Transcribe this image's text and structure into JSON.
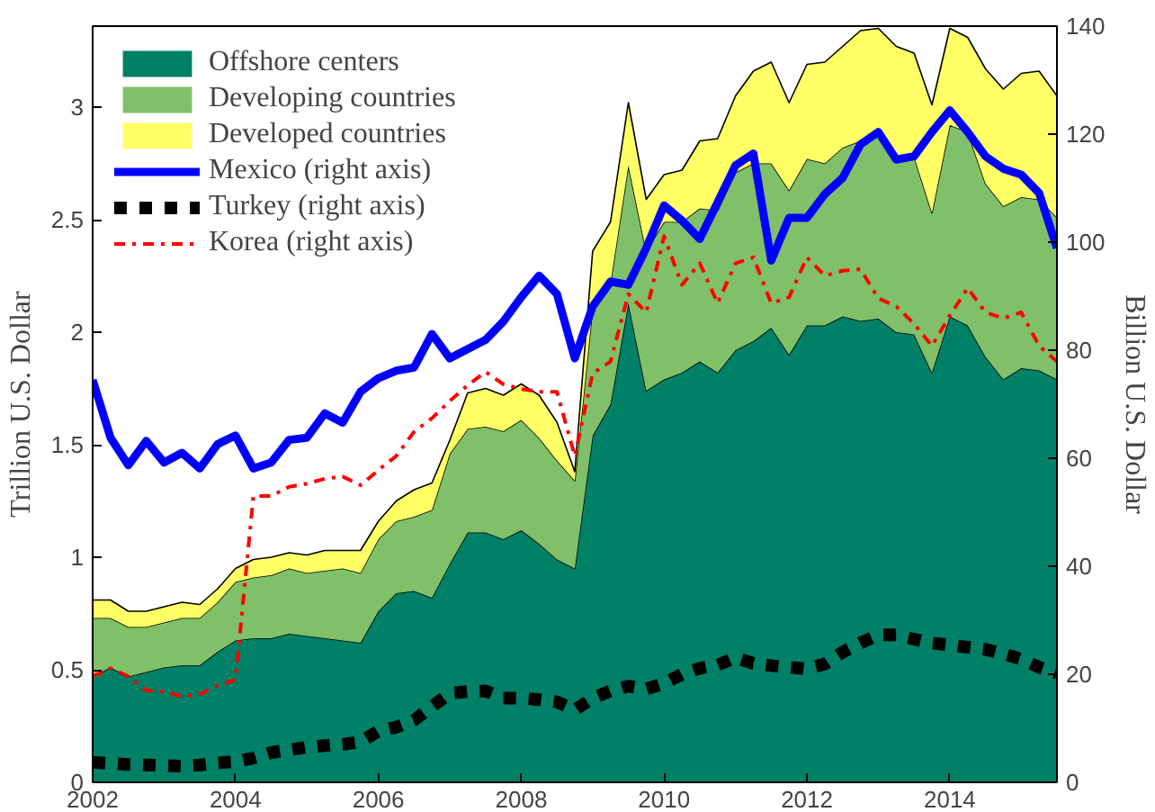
{
  "chart_data": {
    "type": "area",
    "stacked": true,
    "ylabel": "Trillion U.S. Dollar",
    "y2label": "Billion U.S. Dollar",
    "x": [
      2002,
      2002.25,
      2002.5,
      2002.75,
      2003,
      2003.25,
      2003.5,
      2003.75,
      2004,
      2004.25,
      2004.5,
      2004.75,
      2005,
      2005.25,
      2005.5,
      2005.75,
      2006,
      2006.25,
      2006.5,
      2006.75,
      2007,
      2007.25,
      2007.5,
      2007.75,
      2008,
      2008.25,
      2008.5,
      2008.75,
      2009,
      2009.25,
      2009.5,
      2009.75,
      2010,
      2010.25,
      2010.5,
      2010.75,
      2011,
      2011.25,
      2011.5,
      2011.75,
      2012,
      2012.25,
      2012.5,
      2012.75,
      2013,
      2013.25,
      2013.5,
      2013.75,
      2014,
      2014.25,
      2014.5,
      2014.75,
      2015,
      2015.25,
      2015.5
    ],
    "xlim": [
      2002,
      2015.5
    ],
    "xticks": [
      2002,
      2004,
      2006,
      2008,
      2010,
      2012,
      2014
    ],
    "ylim": [
      0,
      3.36
    ],
    "yticks": [
      0,
      0.5,
      1,
      1.5,
      2,
      2.5,
      3
    ],
    "y2lim": [
      0,
      140
    ],
    "y2ticks": [
      0,
      20,
      40,
      60,
      80,
      100,
      120,
      140
    ],
    "legend": "top left",
    "series": [
      {
        "name": "Offshore centers",
        "color": "#008066",
        "values": [
          0.47,
          0.51,
          0.47,
          0.49,
          0.51,
          0.52,
          0.52,
          0.58,
          0.63,
          0.64,
          0.64,
          0.66,
          0.65,
          0.64,
          0.63,
          0.62,
          0.76,
          0.84,
          0.85,
          0.82,
          0.97,
          1.11,
          1.11,
          1.08,
          1.12,
          1.06,
          0.99,
          0.95,
          1.54,
          1.68,
          2.13,
          1.74,
          1.79,
          1.82,
          1.87,
          1.82,
          1.92,
          1.96,
          2.02,
          1.9,
          2.03,
          2.03,
          2.07,
          2.05,
          2.06,
          2.0,
          1.99,
          1.82,
          2.07,
          2.03,
          1.89,
          1.79,
          1.84,
          1.83,
          1.79
        ]
      },
      {
        "name": "Developing countries",
        "color": "#80c068",
        "values": [
          0.26,
          0.22,
          0.22,
          0.2,
          0.2,
          0.21,
          0.21,
          0.22,
          0.26,
          0.27,
          0.28,
          0.29,
          0.28,
          0.3,
          0.32,
          0.31,
          0.32,
          0.32,
          0.33,
          0.39,
          0.49,
          0.46,
          0.47,
          0.48,
          0.49,
          0.47,
          0.44,
          0.39,
          0.57,
          0.54,
          0.61,
          0.62,
          0.7,
          0.67,
          0.68,
          0.72,
          0.79,
          0.79,
          0.73,
          0.73,
          0.74,
          0.72,
          0.75,
          0.8,
          0.83,
          0.77,
          0.79,
          0.71,
          0.85,
          0.86,
          0.77,
          0.77,
          0.76,
          0.76,
          0.72
        ]
      },
      {
        "name": "Developed countries",
        "color": "#ffff66",
        "values": [
          0.08,
          0.08,
          0.07,
          0.07,
          0.07,
          0.07,
          0.06,
          0.06,
          0.06,
          0.08,
          0.08,
          0.07,
          0.08,
          0.09,
          0.08,
          0.1,
          0.08,
          0.09,
          0.12,
          0.12,
          0.06,
          0.16,
          0.17,
          0.16,
          0.16,
          0.19,
          0.17,
          0.04,
          0.25,
          0.27,
          0.28,
          0.23,
          0.21,
          0.23,
          0.3,
          0.32,
          0.34,
          0.41,
          0.45,
          0.39,
          0.42,
          0.45,
          0.45,
          0.49,
          0.46,
          0.5,
          0.46,
          0.48,
          0.43,
          0.42,
          0.51,
          0.52,
          0.55,
          0.57,
          0.54
        ]
      },
      {
        "name": "Mexico (right axis)",
        "type": "line",
        "axis": "y2",
        "line_style": "solid",
        "color": "#0000ff",
        "values": [
          74.5,
          63.8,
          58.7,
          63.2,
          59.2,
          61.0,
          58.1,
          62.6,
          64.2,
          58.1,
          59.2,
          63.4,
          63.8,
          68.3,
          66.6,
          72.3,
          74.8,
          76.2,
          76.8,
          83.0,
          78.5,
          80.2,
          81.9,
          85.3,
          89.8,
          93.8,
          90.4,
          78.5,
          88.1,
          92.7,
          92.1,
          98.9,
          106.8,
          104.0,
          100.6,
          107.4,
          114.2,
          116.4,
          96.6,
          104.5,
          104.5,
          108.9,
          111.9,
          118.1,
          120.4,
          115.3,
          115.9,
          120.4,
          124.4,
          120.4,
          115.9,
          113.6,
          112.5,
          109.1,
          98.9
        ]
      },
      {
        "name": "Turkey (right axis)",
        "type": "line",
        "axis": "y2",
        "line_style": "dotted",
        "color": "#000000",
        "values": [
          3.7,
          3.5,
          3.3,
          3.2,
          3.1,
          3.0,
          3.2,
          3.6,
          3.8,
          4.5,
          5.5,
          6.0,
          6.5,
          6.8,
          7.0,
          7.5,
          9.5,
          10.2,
          11.5,
          14.0,
          16.5,
          16.8,
          16.9,
          15.6,
          15.6,
          15.3,
          14.9,
          13.4,
          15.6,
          16.9,
          17.8,
          17.3,
          18.3,
          20.0,
          21.1,
          21.7,
          23.1,
          22.0,
          21.6,
          21.3,
          21.0,
          21.9,
          24.1,
          25.8,
          27.3,
          27.3,
          26.5,
          25.8,
          25.4,
          25.0,
          24.6,
          23.8,
          22.8,
          21.3,
          20.2
        ]
      },
      {
        "name": "Korea (right axis)",
        "type": "line",
        "axis": "y2",
        "line_style": "dashdot",
        "color": "#ff0000",
        "values": [
          19.6,
          21.1,
          19.6,
          17.0,
          16.8,
          15.9,
          16.3,
          17.9,
          19.0,
          53.0,
          53.0,
          54.7,
          55.3,
          56.2,
          56.6,
          55.0,
          57.8,
          60.4,
          64.9,
          67.4,
          70.6,
          73.5,
          76.0,
          73.7,
          72.8,
          72.3,
          72.3,
          60.4,
          75.7,
          77.9,
          90.4,
          87.0,
          101.1,
          92.1,
          96.1,
          88.7,
          96.1,
          97.2,
          88.7,
          89.8,
          97.2,
          93.8,
          94.7,
          95.0,
          89.6,
          88.1,
          84.9,
          80.8,
          86.4,
          91.5,
          87.0,
          85.9,
          87.0,
          80.8,
          77.9
        ]
      }
    ]
  }
}
